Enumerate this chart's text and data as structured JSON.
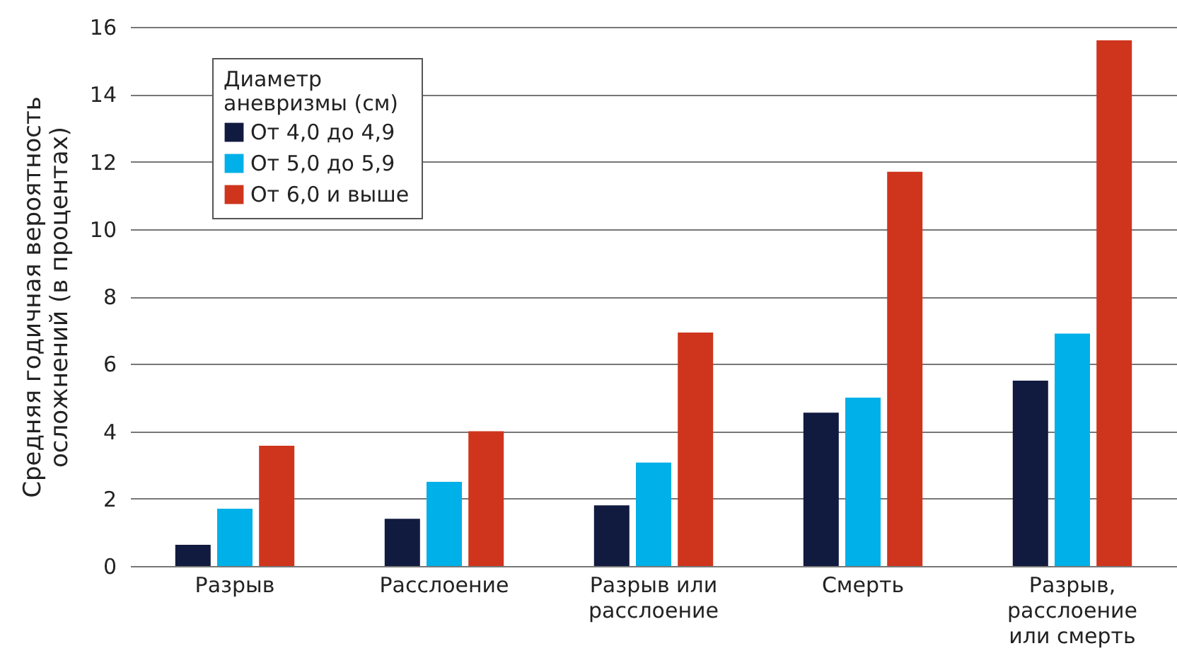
{
  "chart_data": {
    "type": "bar",
    "ylabel": "Средняя годичная вероятность\nосложнений (в процентах)",
    "legend_title": "Диаметр\nаневризмы (см)",
    "categories": [
      "Разрыв",
      "Расслоение",
      "Разрыв или\nрасслоение",
      "Смерть",
      "Разрыв,\nрасслоение\nили смерть"
    ],
    "series": [
      {
        "name": "От 4,0 до 4,9",
        "color": "#111a3f",
        "values": [
          0.63,
          1.4,
          1.8,
          4.55,
          5.5
        ]
      },
      {
        "name": "От 5,0 до 5,9",
        "color": "#00b0e8",
        "values": [
          1.7,
          2.5,
          3.07,
          5.0,
          6.9
        ]
      },
      {
        "name": "От 6,0 и выше",
        "color": "#cf351d",
        "values": [
          3.57,
          4.0,
          6.93,
          11.7,
          15.6
        ]
      }
    ],
    "ylim": [
      0,
      16
    ],
    "yticks": [
      0,
      2,
      4,
      6,
      8,
      10,
      12,
      14,
      16
    ],
    "grid": true,
    "legend": "top left"
  }
}
